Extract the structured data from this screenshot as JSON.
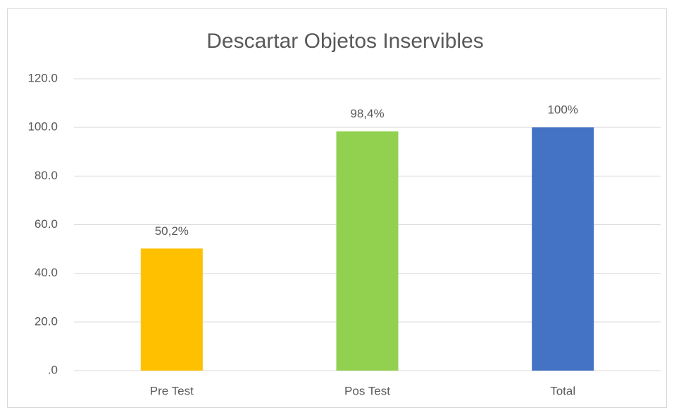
{
  "chart_data": {
    "type": "bar",
    "title": "Descartar Objetos Inservibles",
    "categories": [
      "Pre Test",
      "Pos Test",
      "Total"
    ],
    "values": [
      50.2,
      98.4,
      100
    ],
    "value_labels": [
      "50,2%",
      "98,4%",
      "100%"
    ],
    "colors": [
      "#ffc000",
      "#92d050",
      "#4472c4"
    ],
    "ylim": [
      0,
      120
    ],
    "yticks": [
      {
        "value": 0,
        "label": ".0"
      },
      {
        "value": 20,
        "label": "20.0"
      },
      {
        "value": 40,
        "label": "40.0"
      },
      {
        "value": 60,
        "label": "60.0"
      },
      {
        "value": 80,
        "label": "80.0"
      },
      {
        "value": 100,
        "label": "100.0"
      },
      {
        "value": 120,
        "label": "120.0"
      }
    ],
    "grid": true
  }
}
